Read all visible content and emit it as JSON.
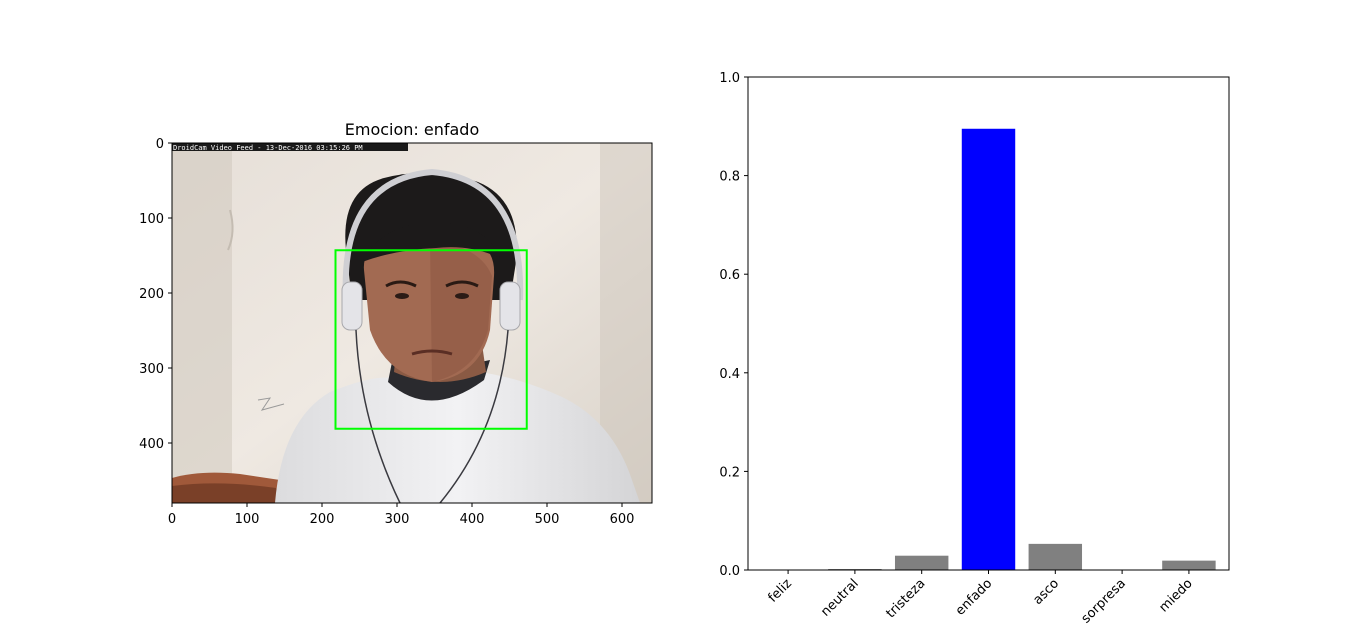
{
  "figure": {
    "image_panel": {
      "title": "Emocion: enfado",
      "overlay_text": "DroidCam Video Feed - 13-Dec-2016 03:15:26 PM",
      "x_ticks": [
        "0",
        "100",
        "200",
        "300",
        "400",
        "500",
        "600"
      ],
      "y_ticks": [
        "0",
        "100",
        "200",
        "300",
        "400"
      ],
      "x_range": [
        0,
        640
      ],
      "y_range": [
        480,
        0
      ],
      "face_box": {
        "x0": 218,
        "y0": 143,
        "x1": 473,
        "y1": 381,
        "color": "#00ff00"
      }
    }
  },
  "chart_data": {
    "type": "bar",
    "categories": [
      "feliz",
      "neutral",
      "tristeza",
      "enfado",
      "asco",
      "sorpresa",
      "miedo"
    ],
    "values": [
      0.0,
      0.002,
      0.029,
      0.895,
      0.053,
      0.0,
      0.019
    ],
    "colors": [
      "#808080",
      "#808080",
      "#808080",
      "#0000ff",
      "#808080",
      "#808080",
      "#808080"
    ],
    "title": "",
    "xlabel": "",
    "ylabel": "",
    "ylim": [
      0,
      1
    ],
    "y_ticks": [
      "0.0",
      "0.2",
      "0.4",
      "0.6",
      "0.8",
      "1.0"
    ],
    "grid": false
  }
}
